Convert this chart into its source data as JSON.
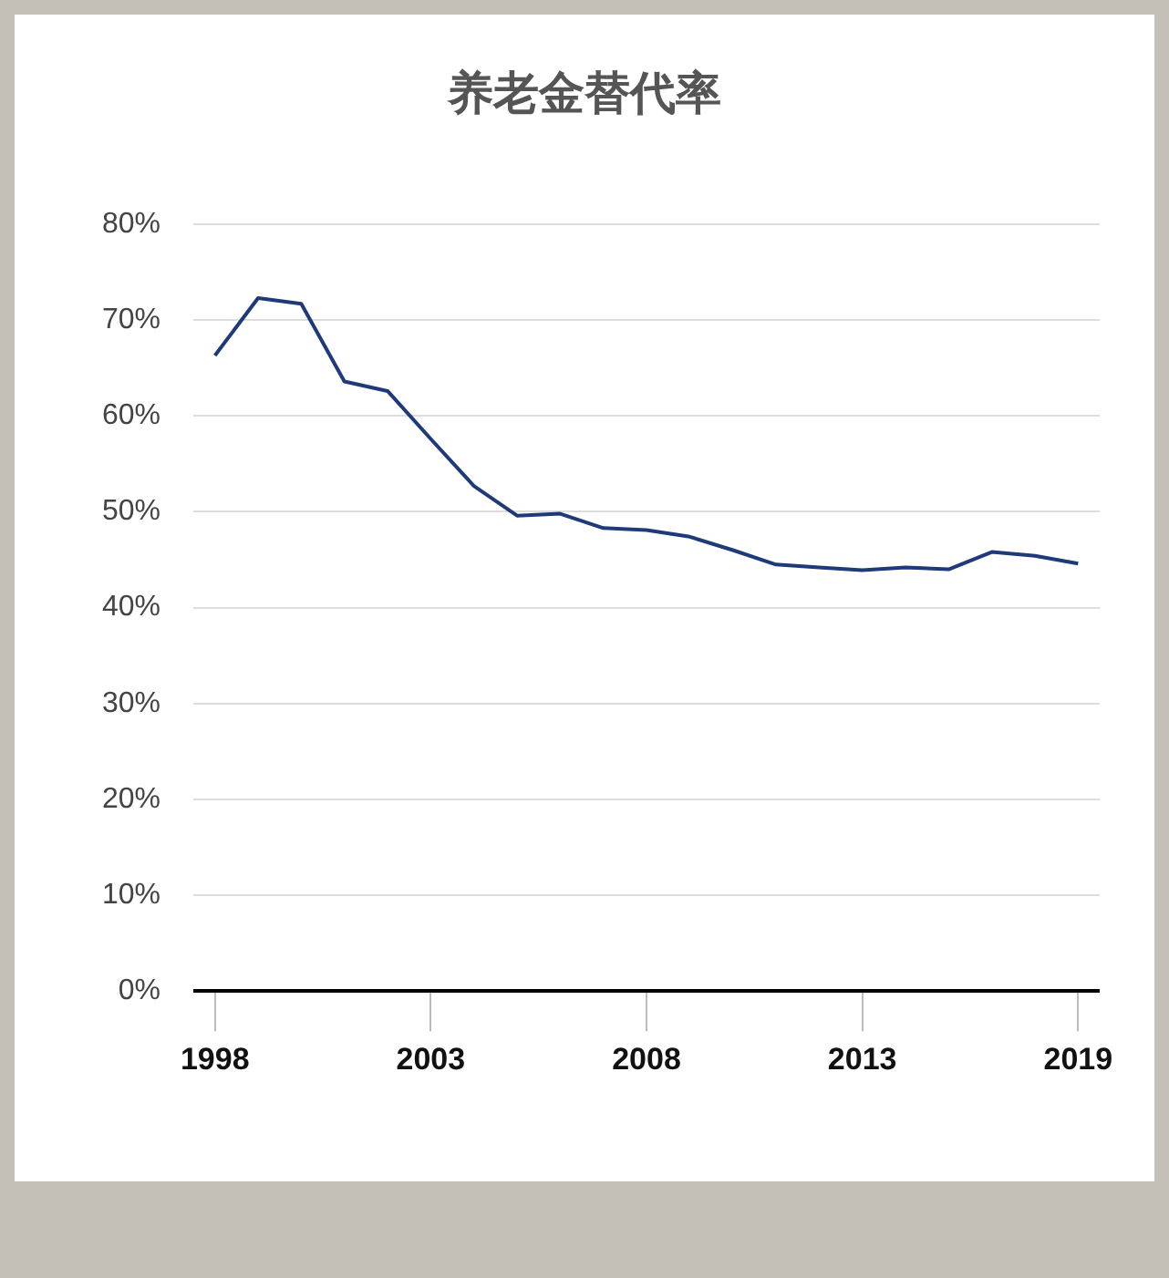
{
  "chart_data": {
    "type": "line",
    "title": "养老金替代率",
    "categories": [
      "1998",
      null,
      null,
      null,
      null,
      "2003",
      null,
      null,
      null,
      null,
      "2008",
      null,
      null,
      null,
      null,
      "2013",
      null,
      null,
      null,
      null,
      "2019"
    ],
    "series": [
      {
        "color": "#1f3a7a",
        "values": [
          66.3,
          72.3,
          71.7,
          63.6,
          62.6,
          57.6,
          52.7,
          49.6,
          49.8,
          48.3,
          48.1,
          47.4,
          46.0,
          44.5,
          44.2,
          43.9,
          44.2,
          44.0,
          45.8,
          45.4,
          44.6
        ]
      }
    ],
    "ylim": [
      0,
      80
    ],
    "yticks": [
      {
        "value": 0,
        "label": "0%"
      },
      {
        "value": 10,
        "label": "10%"
      },
      {
        "value": 20,
        "label": "20%"
      },
      {
        "value": 30,
        "label": "30%"
      },
      {
        "value": 40,
        "label": "40%"
      },
      {
        "value": 50,
        "label": "50%"
      },
      {
        "value": 60,
        "label": "60%"
      },
      {
        "value": 70,
        "label": "70%"
      },
      {
        "value": 80,
        "label": "80%"
      }
    ],
    "grid": "y",
    "legend": false,
    "marker": "none",
    "line_style": "solid"
  }
}
